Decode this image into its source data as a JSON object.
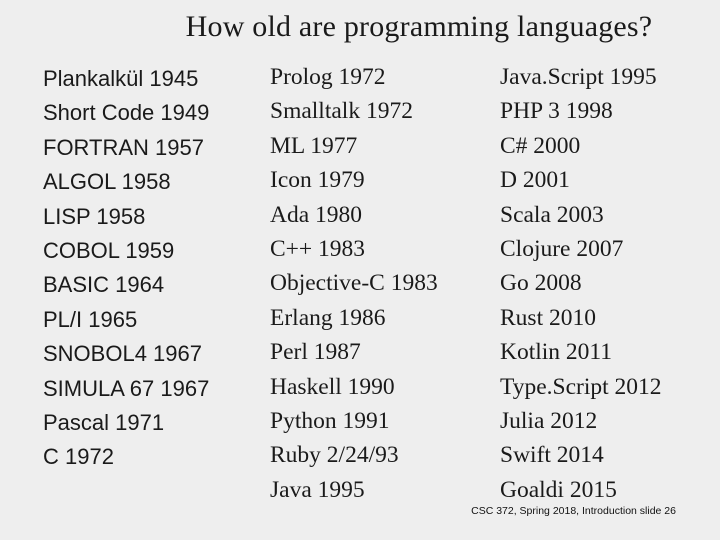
{
  "title": "How old are programming languages?",
  "columns": [
    [
      "Plankalkül 1945",
      "Short Code 1949",
      "FORTRAN 1957",
      "ALGOL 1958",
      "LISP 1958",
      "COBOL 1959",
      "BASIC 1964",
      "PL/I 1965",
      "SNOBOL4 1967",
      "SIMULA 67 1967",
      "Pascal 1971",
      "C 1972"
    ],
    [
      "Prolog 1972",
      "Smalltalk 1972",
      "ML 1977",
      "Icon 1979",
      "Ada 1980",
      "C++ 1983",
      "Objective-C 1983",
      "Erlang 1986",
      "Perl 1987",
      "Haskell 1990",
      "Python 1991",
      "Ruby 2/24/93",
      "Java 1995"
    ],
    [
      "Java.Script 1995",
      "PHP 3 1998",
      "C# 2000",
      "D 2001",
      "Scala 2003",
      "Clojure 2007",
      "Go 2008",
      "Rust 2010",
      "Kotlin 2011",
      "Type.Script 2012",
      "Julia 2012",
      "Swift 2014",
      "Goaldi 2015"
    ]
  ],
  "footer": "CSC 372, Spring 2018, Introduction slide 26"
}
